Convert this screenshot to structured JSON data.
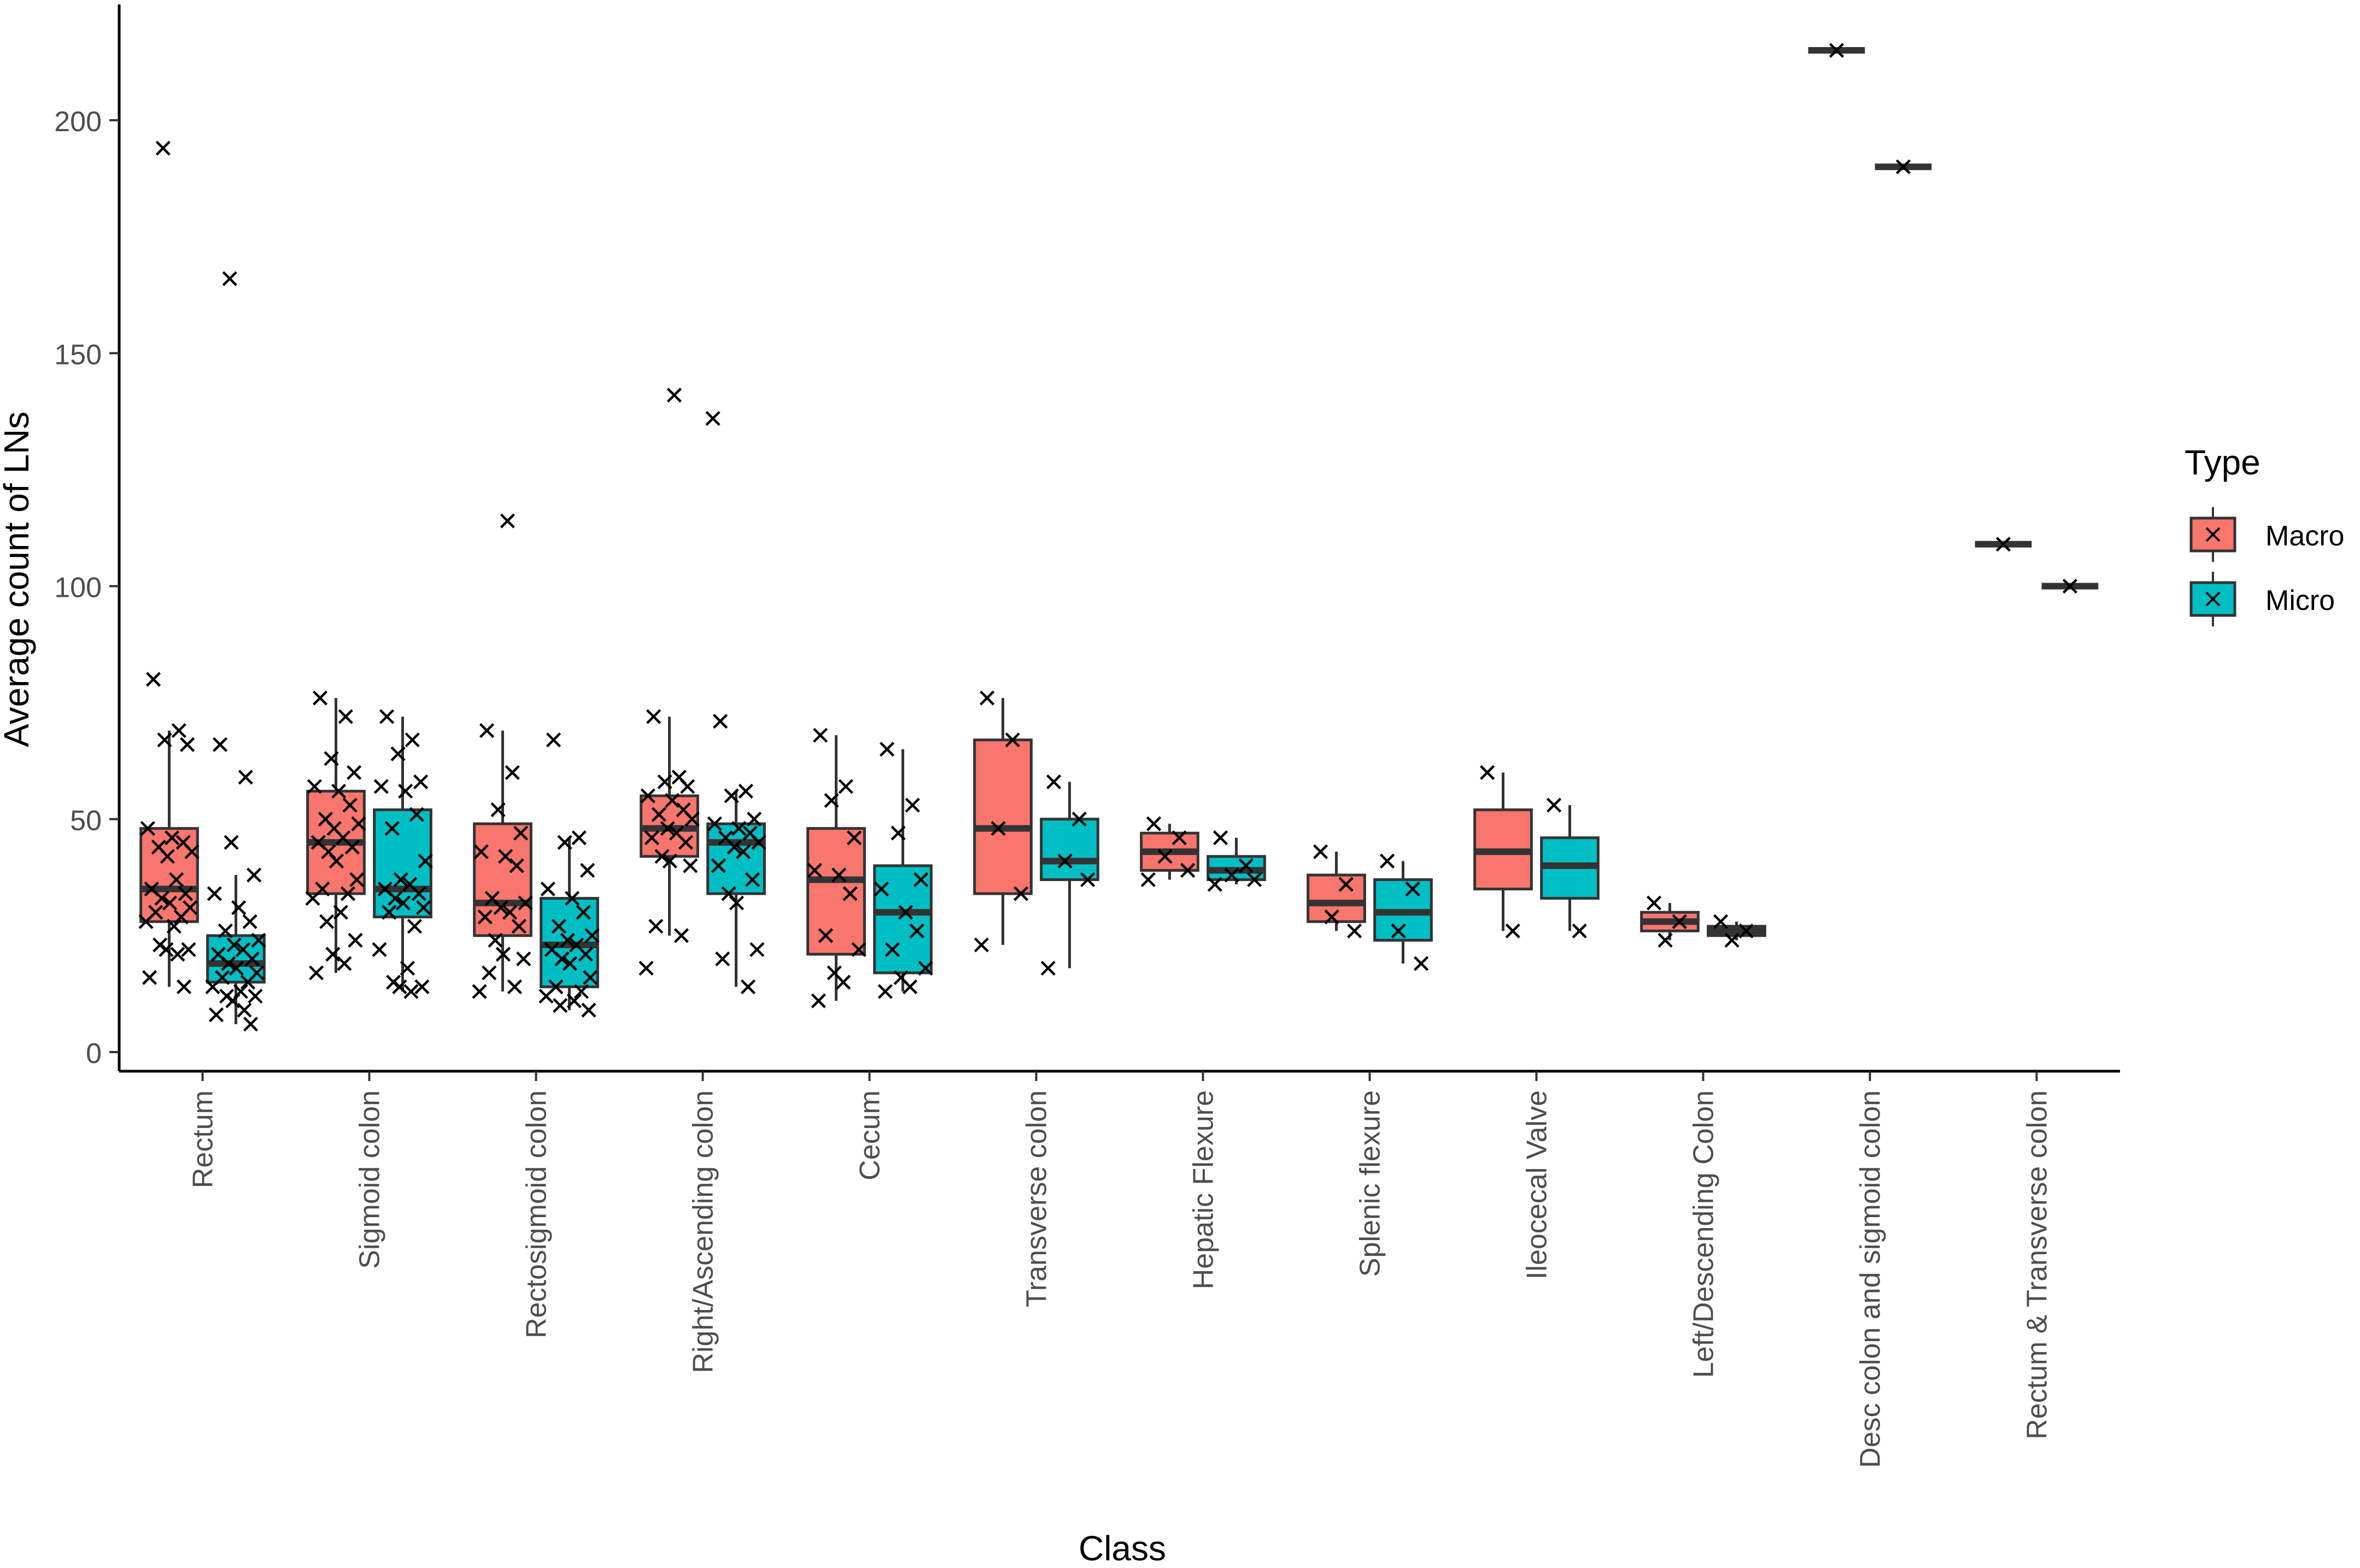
{
  "chart_data": {
    "type": "box",
    "xlabel": "Class",
    "ylabel": "Average count of LNs",
    "ylim": [
      -4,
      221
    ],
    "yticks": [
      0,
      50,
      100,
      150,
      200
    ],
    "categories": [
      "Rectum",
      "Sigmoid colon",
      "Rectosigmoid colon",
      "Right/Ascending colon",
      "Cecum",
      "Transverse colon",
      "Hepatic Flexure",
      "Splenic flexure",
      "Ileocecal Valve",
      "Left/Descending Colon",
      "Desc colon and sigmoid colon",
      "Rectum & Transverse colon"
    ],
    "legend": {
      "title": "Type",
      "position": "right",
      "entries": [
        {
          "name": "Macro",
          "color": "#F8766D"
        },
        {
          "name": "Micro",
          "color": "#00BFC4"
        }
      ]
    },
    "series": [
      {
        "name": "Macro",
        "color": "#F8766D",
        "boxes": [
          {
            "category": "Rectum",
            "q1": 28,
            "median": 35,
            "q3": 48,
            "whisker_low": 14,
            "whisker_high": 69,
            "points": [
              80,
              69,
              67,
              66,
              48,
              46,
              45,
              44,
              43,
              42,
              37,
              35,
              34,
              33,
              32,
              31,
              30,
              29,
              28,
              27,
              23,
              22,
              22,
              21,
              16,
              14,
              194
            ]
          },
          {
            "category": "Sigmoid colon",
            "q1": 34,
            "median": 45,
            "q3": 56,
            "whisker_low": 17,
            "whisker_high": 76,
            "points": [
              76,
              72,
              63,
              60,
              57,
              56,
              53,
              50,
              49,
              48,
              46,
              45,
              44,
              43,
              41,
              37,
              35,
              34,
              33,
              30,
              28,
              24,
              21,
              19,
              17
            ]
          },
          {
            "category": "Rectosigmoid colon",
            "q1": 25,
            "median": 32,
            "q3": 49,
            "whisker_low": 13,
            "whisker_high": 69,
            "points": [
              69,
              60,
              52,
              47,
              43,
              42,
              40,
              33,
              32,
              31,
              30,
              29,
              27,
              24,
              21,
              20,
              17,
              14,
              13,
              114
            ]
          },
          {
            "category": "Right/Ascending colon",
            "q1": 42,
            "median": 48,
            "q3": 55,
            "whisker_low": 25,
            "whisker_high": 72,
            "points": [
              72,
              59,
              58,
              57,
              55,
              54,
              52,
              51,
              50,
              48,
              47,
              46,
              45,
              42,
              41,
              40,
              27,
              25,
              18,
              141
            ]
          },
          {
            "category": "Cecum",
            "q1": 21,
            "median": 37,
            "q3": 48,
            "whisker_low": 11,
            "whisker_high": 68,
            "points": [
              68,
              57,
              54,
              46,
              39,
              38,
              34,
              25,
              22,
              17,
              15,
              11
            ]
          },
          {
            "category": "Transverse colon",
            "q1": 34,
            "median": 48,
            "q3": 67,
            "whisker_low": 23,
            "whisker_high": 76,
            "points": [
              76,
              67,
              48,
              34,
              23
            ]
          },
          {
            "category": "Hepatic Flexure",
            "q1": 39,
            "median": 43,
            "q3": 47,
            "whisker_low": 37,
            "whisker_high": 49,
            "points": [
              49,
              46,
              42,
              39,
              37
            ]
          },
          {
            "category": "Splenic flexure",
            "q1": 28,
            "median": 32,
            "q3": 38,
            "whisker_low": 26,
            "whisker_high": 43,
            "points": [
              43,
              36,
              29,
              26
            ]
          },
          {
            "category": "Ileocecal Valve",
            "q1": 35,
            "median": 43,
            "q3": 52,
            "whisker_low": 26,
            "whisker_high": 60,
            "points": [
              60,
              26
            ]
          },
          {
            "category": "Left/Descending Colon",
            "q1": 26,
            "median": 28,
            "q3": 30,
            "whisker_low": 24,
            "whisker_high": 32,
            "points": [
              32,
              28,
              24
            ]
          },
          {
            "category": "Desc colon and sigmoid colon",
            "q1": 215,
            "median": 215,
            "q3": 215,
            "whisker_low": 215,
            "whisker_high": 215,
            "points": [
              215
            ]
          },
          {
            "category": "Rectum & Transverse colon",
            "q1": 109,
            "median": 109,
            "q3": 109,
            "whisker_low": 109,
            "whisker_high": 109,
            "points": [
              109
            ]
          }
        ]
      },
      {
        "name": "Micro",
        "color": "#00BFC4",
        "boxes": [
          {
            "category": "Rectum",
            "q1": 15,
            "median": 19,
            "q3": 25,
            "whisker_low": 6,
            "whisker_high": 38,
            "points": [
              66,
              59,
              45,
              38,
              34,
              31,
              28,
              26,
              24,
              23,
              22,
              21,
              20,
              19,
              18,
              17,
              16,
              15,
              14,
              13,
              12,
              12,
              11,
              9,
              8,
              6,
              166
            ]
          },
          {
            "category": "Sigmoid colon",
            "q1": 29,
            "median": 35,
            "q3": 52,
            "whisker_low": 13,
            "whisker_high": 72,
            "points": [
              72,
              67,
              64,
              58,
              57,
              56,
              51,
              48,
              41,
              37,
              36,
              35,
              34,
              33,
              32,
              31,
              30,
              27,
              22,
              18,
              15,
              14,
              14,
              13
            ]
          },
          {
            "category": "Rectosigmoid colon",
            "q1": 14,
            "median": 23,
            "q3": 33,
            "whisker_low": 9,
            "whisker_high": 46,
            "points": [
              67,
              46,
              45,
              39,
              35,
              33,
              30,
              27,
              25,
              24,
              23,
              22,
              21,
              20,
              19,
              16,
              14,
              13,
              12,
              11,
              10,
              9
            ]
          },
          {
            "category": "Right/Ascending colon",
            "q1": 34,
            "median": 45,
            "q3": 49,
            "whisker_low": 14,
            "whisker_high": 56,
            "points": [
              71,
              56,
              55,
              50,
              49,
              48,
              47,
              46,
              45,
              44,
              43,
              40,
              37,
              34,
              32,
              22,
              20,
              14,
              136
            ]
          },
          {
            "category": "Cecum",
            "q1": 17,
            "median": 30,
            "q3": 40,
            "whisker_low": 13,
            "whisker_high": 65,
            "points": [
              65,
              53,
              47,
              37,
              35,
              30,
              26,
              22,
              18,
              16,
              14,
              13
            ]
          },
          {
            "category": "Transverse colon",
            "q1": 37,
            "median": 41,
            "q3": 50,
            "whisker_low": 18,
            "whisker_high": 58,
            "points": [
              58,
              50,
              41,
              37,
              18
            ]
          },
          {
            "category": "Hepatic Flexure",
            "q1": 37,
            "median": 39,
            "q3": 42,
            "whisker_low": 36,
            "whisker_high": 46,
            "points": [
              46,
              40,
              38,
              37,
              36
            ]
          },
          {
            "category": "Splenic flexure",
            "q1": 24,
            "median": 30,
            "q3": 37,
            "whisker_low": 19,
            "whisker_high": 41,
            "points": [
              41,
              35,
              26,
              19
            ]
          },
          {
            "category": "Ileocecal Valve",
            "q1": 33,
            "median": 40,
            "q3": 46,
            "whisker_low": 26,
            "whisker_high": 53,
            "points": [
              53,
              26
            ]
          },
          {
            "category": "Left/Descending Colon",
            "q1": 25,
            "median": 26,
            "q3": 27,
            "whisker_low": 24,
            "whisker_high": 28,
            "points": [
              28,
              26,
              24
            ]
          },
          {
            "category": "Desc colon and sigmoid colon",
            "q1": 190,
            "median": 190,
            "q3": 190,
            "whisker_low": 190,
            "whisker_high": 190,
            "points": [
              190
            ]
          },
          {
            "category": "Rectum & Transverse colon",
            "q1": 100,
            "median": 100,
            "q3": 100,
            "whisker_low": 100,
            "whisker_high": 100,
            "points": [
              100
            ]
          }
        ]
      }
    ]
  }
}
